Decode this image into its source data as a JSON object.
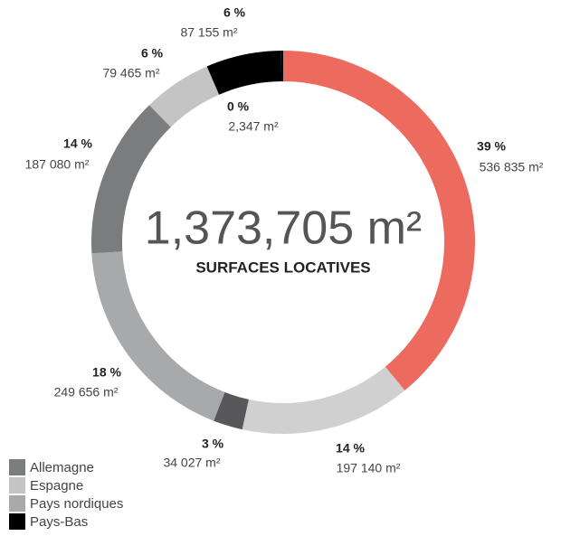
{
  "chart_data": {
    "type": "donut",
    "total_label": "1,373,705 m²",
    "subtitle": "SURFACES LOCATIVES",
    "values": [
      536835,
      197140,
      34027,
      249656,
      187080,
      79465,
      87155,
      2347
    ],
    "value_labels": [
      "536 835 m²",
      "197 140 m²",
      "34 027 m²",
      "249 656 m²",
      "187 080 m²",
      "79 465 m²",
      "87 155 m²",
      "2,347 m²"
    ],
    "percent_labels": [
      "39 %",
      "14 %",
      "3 %",
      "18 %",
      "14 %",
      "6 %",
      "6 %",
      "0 %"
    ],
    "colors": [
      "#ec6a5e",
      "#d0d0d1",
      "#58585a",
      "#a8a9ab",
      "#7b7c7e",
      "#c4c4c5",
      "#000000",
      "#000000"
    ],
    "legend": [
      {
        "name": "Allemagne",
        "color": "#7b7c7e"
      },
      {
        "name": "Espagne",
        "color": "#c4c4c5"
      },
      {
        "name": "Pays nordiques",
        "color": "#a8a9ab"
      },
      {
        "name": "Pays-Bas",
        "color": "#000000"
      }
    ]
  }
}
